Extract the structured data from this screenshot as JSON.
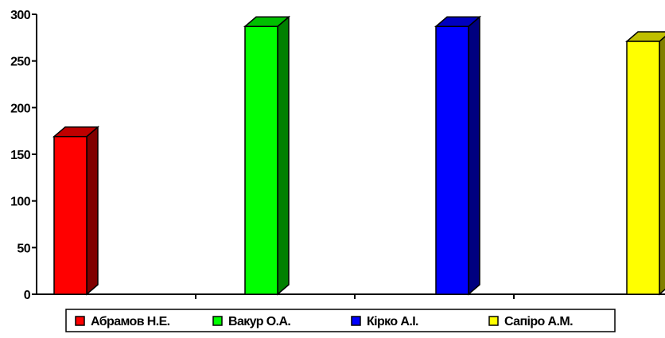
{
  "chart_data": {
    "type": "bar",
    "style": "3d-column",
    "categories": [
      "Абрамов Н.Е.",
      "Вакур О.А.",
      "Кірко А.І.",
      "Сапіро А.М."
    ],
    "values": [
      169,
      287,
      287,
      271
    ],
    "colors": [
      "#ff0000",
      "#00ff00",
      "#0000ff",
      "#ffff00"
    ],
    "ylim": [
      0,
      300
    ],
    "yticks": [
      0,
      50,
      100,
      150,
      200,
      250,
      300
    ],
    "grid": false,
    "legend_position": "bottom",
    "legend": [
      {
        "label": "Абрамов Н.Е.",
        "color": "#ff0000"
      },
      {
        "label": "Вакур О.А.",
        "color": "#00ff00"
      },
      {
        "label": "Кірко А.І.",
        "color": "#0000ff"
      },
      {
        "label": "Сапіро А.М.",
        "color": "#ffff00"
      }
    ]
  }
}
